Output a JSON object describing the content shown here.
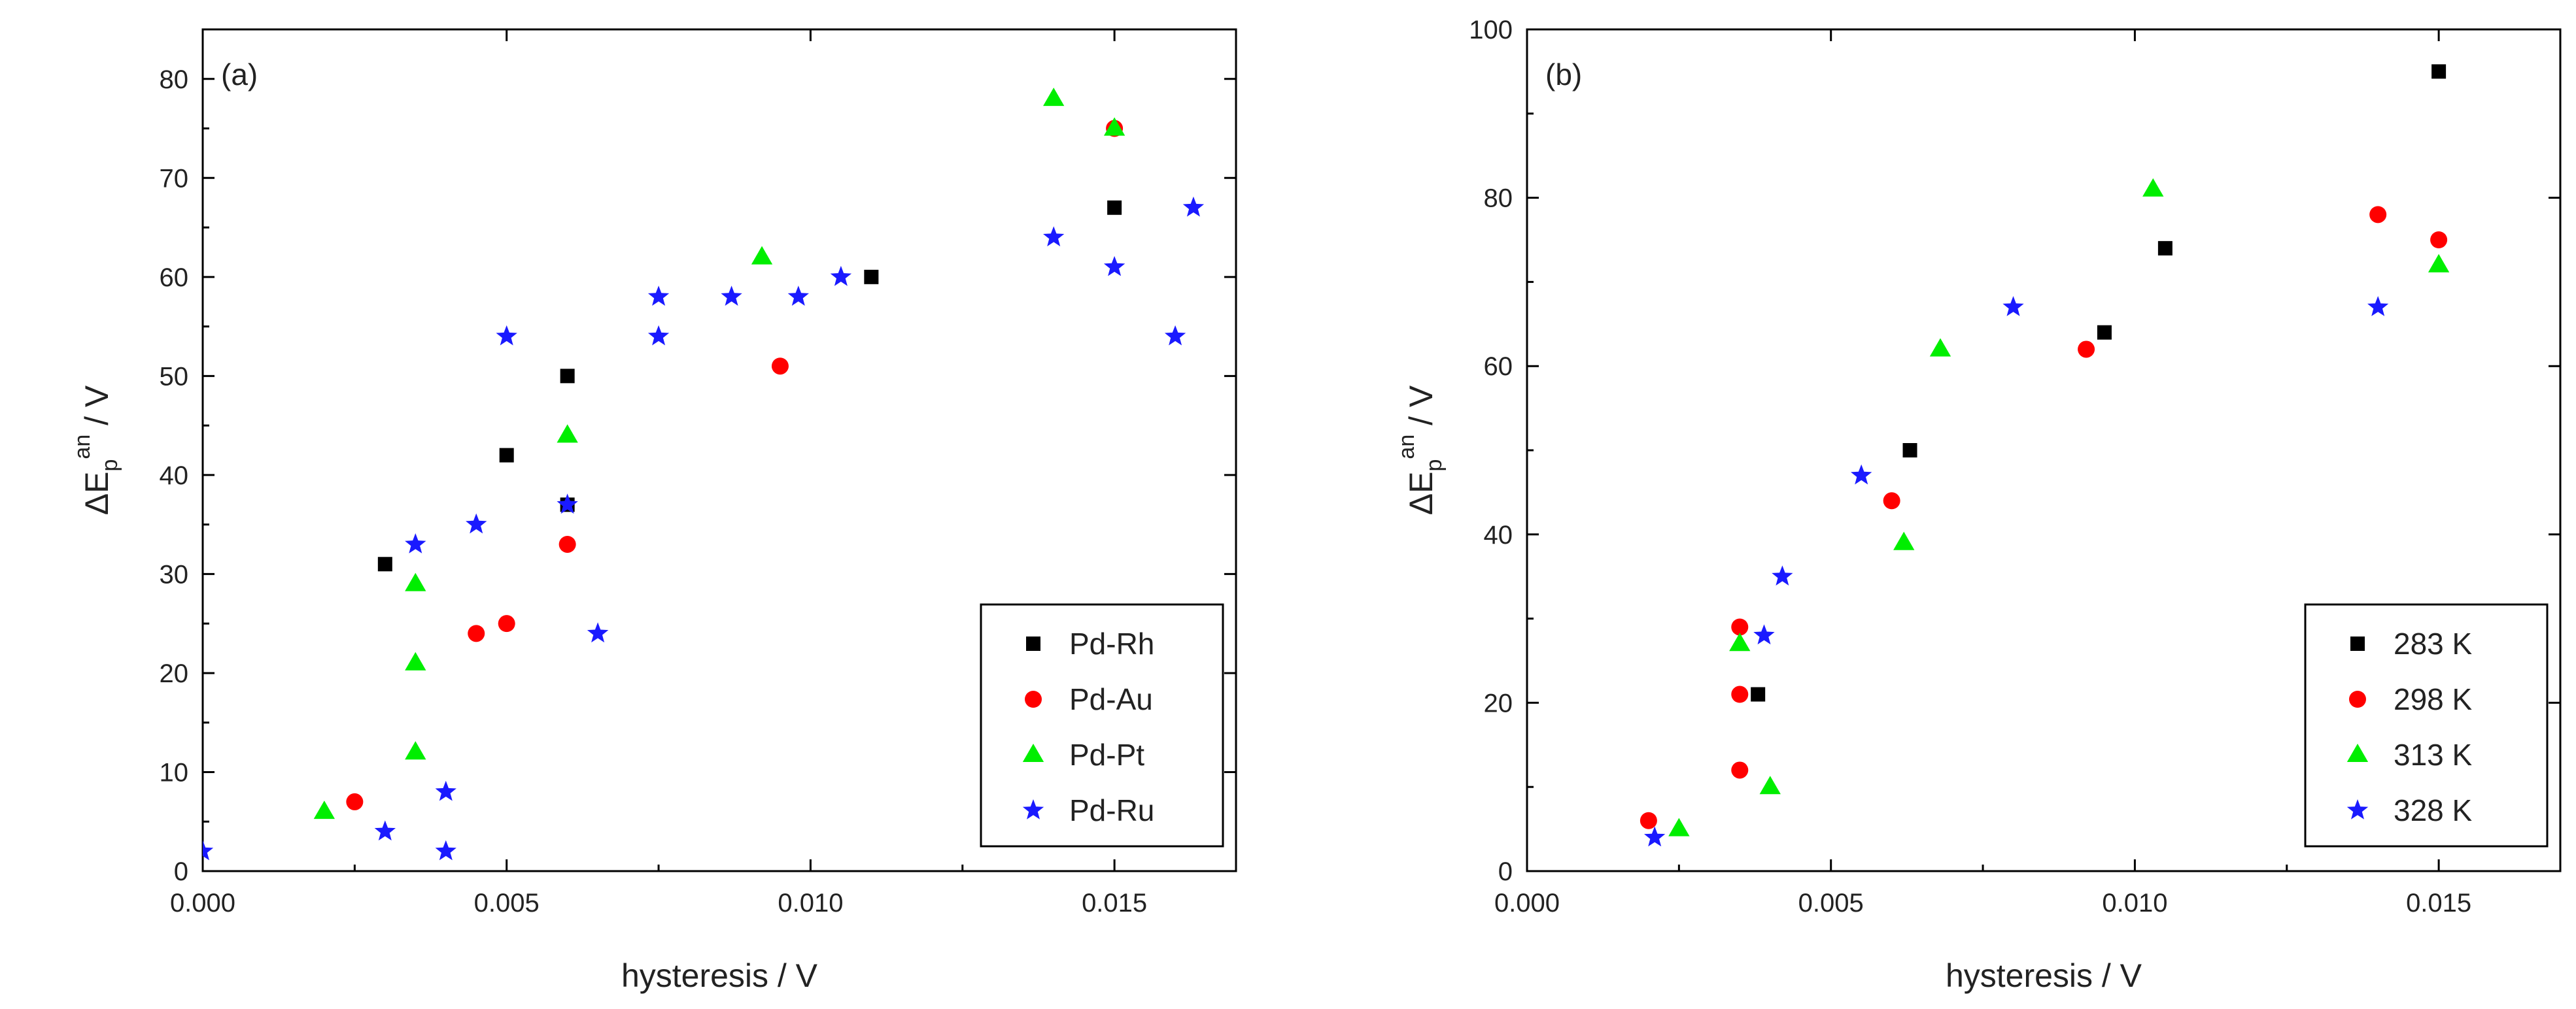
{
  "chart_data": [
    {
      "type": "scatter",
      "panel_label": "(a)",
      "xlabel": "hysteresis / V",
      "ylabel": {
        "main": "ΔE",
        "sub": "p",
        "sup": "an",
        "unit": " / V"
      },
      "xlim": [
        0,
        0.017
      ],
      "ylim": [
        0,
        85
      ],
      "xticks": [
        0,
        0.005,
        0.01,
        0.015
      ],
      "xtick_labels": [
        "0.000",
        "0.005",
        "0.010",
        "0.015"
      ],
      "yticks": [
        0,
        10,
        20,
        30,
        40,
        50,
        60,
        70,
        80
      ],
      "ytick_labels": [
        "0",
        "10",
        "20",
        "30",
        "40",
        "50",
        "60",
        "70",
        "80"
      ],
      "legend_position": "bottom-right",
      "series": [
        {
          "name": "Pd-Rh",
          "marker": "square",
          "color": "#000000",
          "points": [
            [
              0.003,
              31
            ],
            [
              0.005,
              42
            ],
            [
              0.006,
              50
            ],
            [
              0.006,
              37
            ],
            [
              0.011,
              60
            ],
            [
              0.015,
              67
            ]
          ]
        },
        {
          "name": "Pd-Au",
          "marker": "circle",
          "color": "#ff0000",
          "points": [
            [
              0.0025,
              7
            ],
            [
              0.0045,
              24
            ],
            [
              0.005,
              25
            ],
            [
              0.006,
              33
            ],
            [
              0.0095,
              51
            ],
            [
              0.015,
              75
            ]
          ]
        },
        {
          "name": "Pd-Pt",
          "marker": "triangle",
          "color": "#00ee00",
          "points": [
            [
              0.002,
              6
            ],
            [
              0.0035,
              12
            ],
            [
              0.0035,
              21
            ],
            [
              0.0035,
              29
            ],
            [
              0.006,
              44
            ],
            [
              0.0092,
              62
            ],
            [
              0.014,
              78
            ],
            [
              0.015,
              75
            ]
          ]
        },
        {
          "name": "Pd-Ru",
          "marker": "star",
          "color": "#1a1aff",
          "points": [
            [
              0.0,
              2
            ],
            [
              0.003,
              4
            ],
            [
              0.004,
              2
            ],
            [
              0.004,
              8
            ],
            [
              0.0035,
              33
            ],
            [
              0.0045,
              35
            ],
            [
              0.005,
              54
            ],
            [
              0.006,
              37
            ],
            [
              0.0065,
              24
            ],
            [
              0.0075,
              54
            ],
            [
              0.0075,
              58
            ],
            [
              0.0087,
              58
            ],
            [
              0.0098,
              58
            ],
            [
              0.0105,
              60
            ],
            [
              0.014,
              64
            ],
            [
              0.015,
              61
            ],
            [
              0.016,
              54
            ],
            [
              0.0163,
              67
            ]
          ]
        }
      ]
    },
    {
      "type": "scatter",
      "panel_label": "(b)",
      "xlabel": "hysteresis / V",
      "ylabel": {
        "main": "ΔE",
        "sub": "p",
        "sup": "an",
        "unit": " / V"
      },
      "xlim": [
        0,
        0.017
      ],
      "ylim": [
        0,
        100
      ],
      "xticks": [
        0,
        0.005,
        0.01,
        0.015
      ],
      "xtick_labels": [
        "0.000",
        "0.005",
        "0.010",
        "0.015"
      ],
      "yticks": [
        0,
        20,
        40,
        60,
        80,
        100
      ],
      "ytick_labels": [
        "0",
        "20",
        "40",
        "60",
        "80",
        "100"
      ],
      "legend_position": "bottom-right",
      "series": [
        {
          "name": "283 K",
          "marker": "square",
          "color": "#000000",
          "points": [
            [
              0.0038,
              21
            ],
            [
              0.0063,
              50
            ],
            [
              0.0095,
              64
            ],
            [
              0.0105,
              74
            ],
            [
              0.015,
              95
            ]
          ]
        },
        {
          "name": "298 K",
          "marker": "circle",
          "color": "#ff0000",
          "points": [
            [
              0.002,
              6
            ],
            [
              0.0035,
              12
            ],
            [
              0.0035,
              21
            ],
            [
              0.0035,
              29
            ],
            [
              0.006,
              44
            ],
            [
              0.0092,
              62
            ],
            [
              0.014,
              78
            ],
            [
              0.015,
              75
            ]
          ]
        },
        {
          "name": "313 K",
          "marker": "triangle",
          "color": "#00ee00",
          "points": [
            [
              0.0025,
              5
            ],
            [
              0.0035,
              27
            ],
            [
              0.004,
              10
            ],
            [
              0.0062,
              39
            ],
            [
              0.0068,
              62
            ],
            [
              0.0103,
              81
            ],
            [
              0.015,
              72
            ]
          ]
        },
        {
          "name": "328 K",
          "marker": "star",
          "color": "#1a1aff",
          "points": [
            [
              0.0021,
              4
            ],
            [
              0.0039,
              28
            ],
            [
              0.0042,
              35
            ],
            [
              0.0055,
              47
            ],
            [
              0.008,
              67
            ],
            [
              0.014,
              67
            ]
          ]
        }
      ]
    }
  ]
}
